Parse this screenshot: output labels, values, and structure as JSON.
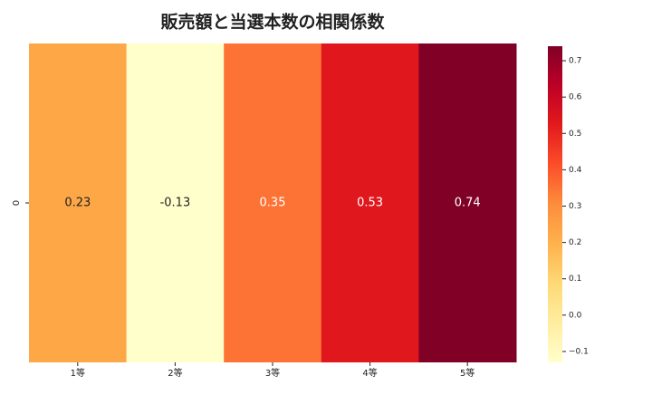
{
  "chart_data": {
    "type": "heatmap",
    "title": "販売額と当選本数の相関係数",
    "x_categories": [
      "1等",
      "2等",
      "3等",
      "4等",
      "5等"
    ],
    "y_categories": [
      "0"
    ],
    "values": [
      [
        0.23,
        -0.13,
        0.35,
        0.53,
        0.74
      ]
    ],
    "cmap": "YlOrRd",
    "colorbar_lim": [
      -0.13,
      0.74
    ],
    "colorbar_ticks": [
      {
        "value": -0.1,
        "label": "−0.1"
      },
      {
        "value": 0,
        "label": "0.0"
      },
      0.1,
      0.2,
      0.3,
      0.4,
      0.5,
      0.6,
      0.7
    ]
  }
}
